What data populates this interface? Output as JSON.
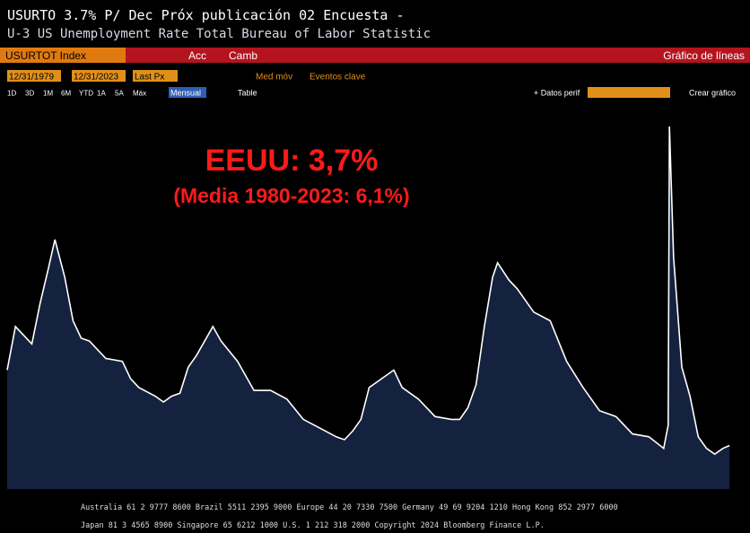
{
  "header": {
    "line1": "USURTO 3.7%  P/ Dec  Próx publicación 02  Encuesta -",
    "line2": "U-3 US Unemployment Rate Total  Bureau of Labor Statistic"
  },
  "menu": {
    "index": "USURTOT Index",
    "actions": "Acc",
    "change": "Camb",
    "chart_kind": "Gráfico de líneas"
  },
  "toolbar": {
    "start": "12/31/1979",
    "end": "12/31/2023",
    "field": "Last Px",
    "moving_avg": "Med móv",
    "events": "Eventos clave",
    "add_data": "+ Datos perif",
    "create": "Crear gráfico"
  },
  "periods": [
    "1D",
    "3D",
    "1M",
    "6M",
    "YTD",
    "1A",
    "5A",
    "Máx"
  ],
  "frequency": "Mensual",
  "table": "Table",
  "chart_data": {
    "type": "area",
    "annotations": [
      "EEUU: 3,7%",
      "(Media 1980-2023: 6,1%)"
    ],
    "x": [
      1980.0,
      1980.5,
      1981.0,
      1981.5,
      1982.0,
      1982.5,
      1982.9,
      1983.5,
      1984.0,
      1984.5,
      1985.0,
      1986.0,
      1987.0,
      1987.5,
      1988.0,
      1989.0,
      1989.5,
      1990.0,
      1990.5,
      1991.0,
      1991.5,
      1992.5,
      1993.0,
      1994.0,
      1995.0,
      1996.0,
      1997.0,
      1998.0,
      1999.0,
      2000.0,
      2000.5,
      2001.0,
      2001.5,
      2002.0,
      2003.5,
      2004.0,
      2005.0,
      2006.0,
      2007.0,
      2007.5,
      2008.0,
      2008.5,
      2009.0,
      2009.5,
      2009.8,
      2010.5,
      2011.0,
      2012.0,
      2013.0,
      2014.0,
      2015.0,
      2016.0,
      2017.0,
      2018.0,
      2019.0,
      2019.9,
      2020.17,
      2020.25,
      2020.5,
      2021.0,
      2021.5,
      2022.0,
      2022.5,
      2023.0,
      2023.5,
      2023.9
    ],
    "values": [
      6.3,
      7.8,
      7.5,
      7.2,
      8.6,
      9.8,
      10.8,
      9.5,
      8.0,
      7.4,
      7.3,
      6.7,
      6.6,
      6.0,
      5.7,
      5.4,
      5.2,
      5.4,
      5.5,
      6.4,
      6.8,
      7.8,
      7.3,
      6.6,
      5.6,
      5.6,
      5.3,
      4.6,
      4.3,
      4.0,
      3.9,
      4.2,
      4.6,
      5.7,
      6.3,
      5.7,
      5.3,
      4.7,
      4.6,
      4.6,
      5.0,
      5.8,
      7.8,
      9.5,
      10.0,
      9.4,
      9.1,
      8.3,
      8.0,
      6.6,
      5.7,
      4.9,
      4.7,
      4.1,
      4.0,
      3.6,
      4.4,
      14.7,
      10.2,
      6.4,
      5.4,
      4.0,
      3.6,
      3.4,
      3.6,
      3.7
    ],
    "xlim": [
      1980,
      2024
    ],
    "ylim": [
      2.2,
      15.5
    ],
    "color": "#14223f",
    "line_color": "#ffffff"
  },
  "footer": [
    "Australia 61 2 9777 8600 Brazil 5511 2395 9000 Europe 44 20 7330 7500 Germany 49 69 9204 1210 Hong Kong 852 2977 6000",
    "Japan 81 3 4565 8900 Singapore 65 6212 1000 U.S. 1 212 318 2000 Copyright 2024 Bloomberg Finance L.P."
  ]
}
